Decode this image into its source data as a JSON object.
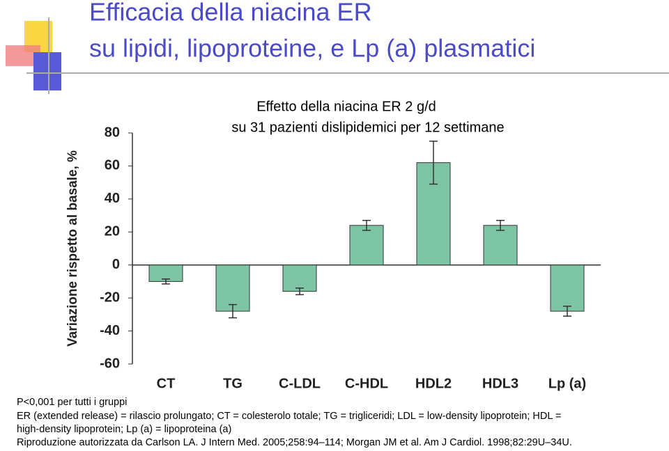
{
  "slide": {
    "title_lines": [
      "Efficacia della niacina ER",
      "su lipidi, lipoproteine, e Lp (a) plasmatici"
    ],
    "notes": [
      "P<0,001 per tutti i gruppi",
      "ER (extended release) = rilascio prolungato; CT = colesterolo totale; TG = trigliceridi; LDL = low-density lipoprotein; HDL =",
      "high-density lipoprotein; Lp (a) = lipoproteina (a)",
      "Riproduzione autorizzata da Carlson LA. J Intern Med. 2005;258:94–114; Morgan JM et al. Am J Cardiol. 1998;82:29U–34U."
    ]
  },
  "chart_data": {
    "type": "bar",
    "title_lines": [
      "Effetto della niacina ER 2 g/d",
      "su 31 pazienti dislipidemici per 12 settimane"
    ],
    "y_label": "Variazione rispetto al basale, %",
    "categories": [
      "CT",
      "TG",
      "C-LDL",
      "C-HDL",
      "HDL2",
      "HDL3",
      "Lp (a)"
    ],
    "values": [
      -10,
      -28,
      -16,
      24,
      62,
      24,
      -28
    ],
    "errors": [
      1.5,
      4,
      2,
      3,
      13,
      3,
      3
    ],
    "color": "#7cc4a4",
    "ylim": [
      -60,
      80
    ],
    "yticks": [
      -60,
      -40,
      -20,
      0,
      20,
      40,
      60,
      80
    ]
  }
}
